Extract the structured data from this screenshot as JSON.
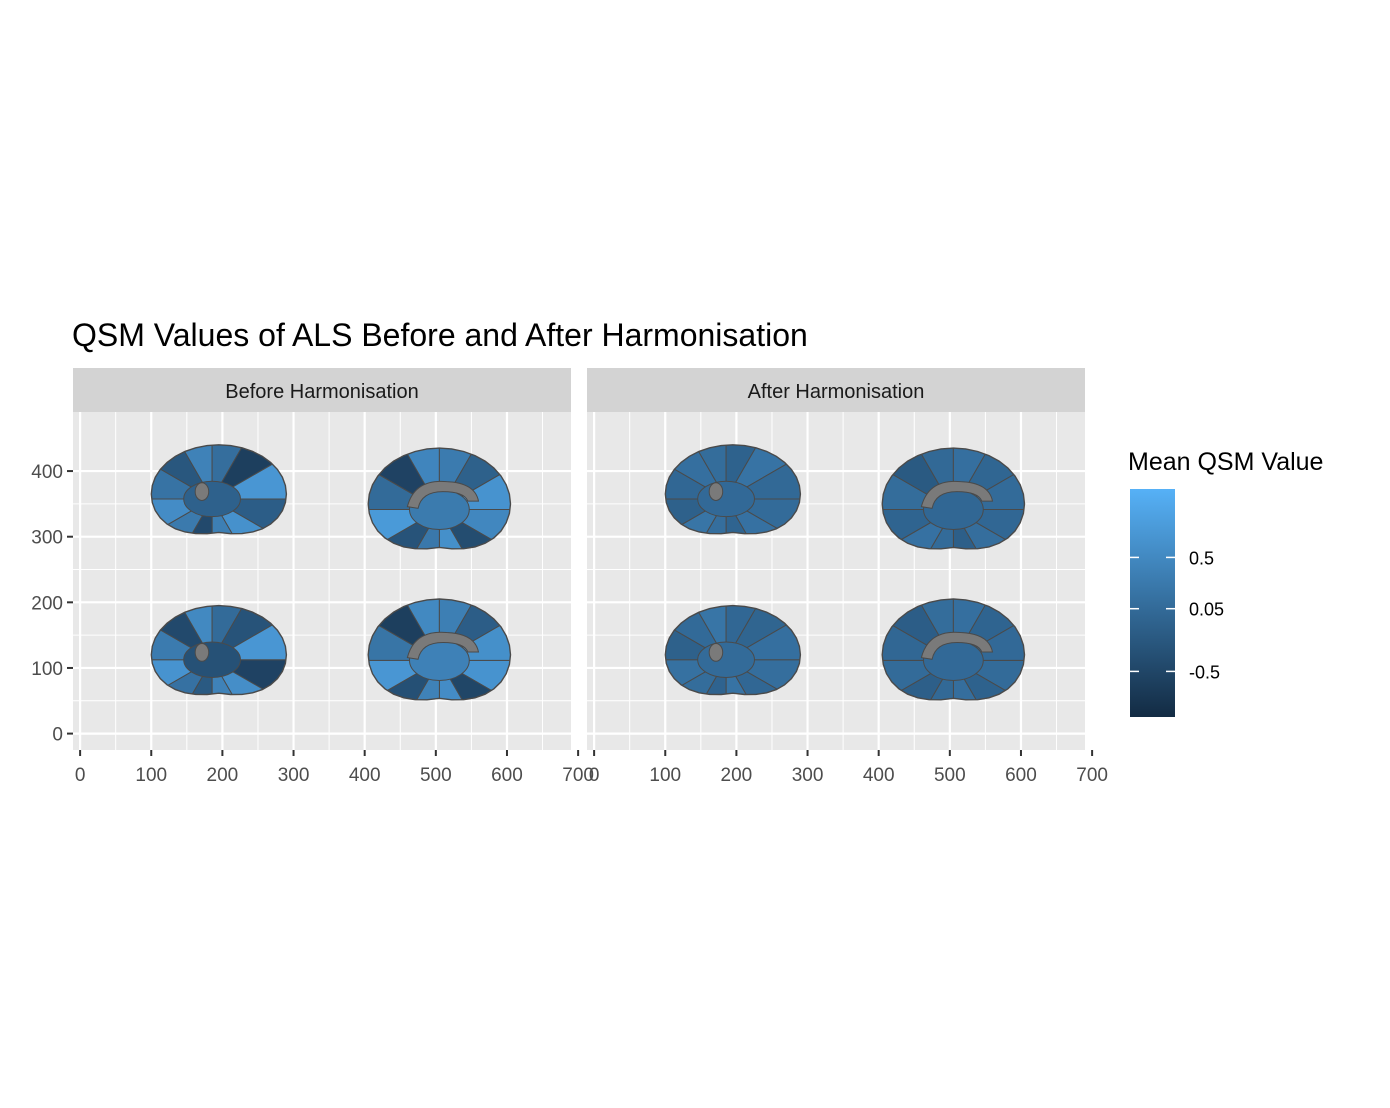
{
  "chart_data": {
    "type": "heatmap",
    "title": "QSM Values of ALS Before and After Harmonisation",
    "xlabel": "",
    "ylabel": "",
    "xlim": [
      -10,
      690
    ],
    "ylim": [
      -25,
      490
    ],
    "x_ticks": [
      0,
      100,
      200,
      300,
      400,
      500,
      600,
      700
    ],
    "y_ticks": [
      0,
      100,
      200,
      300,
      400
    ],
    "grid": true,
    "colors": {
      "low": "#132B43",
      "high": "#56B1F7",
      "missing": "#7a7a7a",
      "outline": "#4a4a4a",
      "panel_bg": "#e8e8e8",
      "strip_bg": "#d3d3d3",
      "grid": "#ffffff"
    },
    "legend": {
      "title": "Mean QSM Value",
      "position": "right",
      "range": [
        -0.9,
        1.1
      ],
      "breaks": [
        0.5,
        0.05,
        -0.5
      ],
      "break_labels": [
        "0.5",
        "0.05",
        "-0.5"
      ]
    },
    "panels": [
      {
        "strip": "Before Harmonisation",
        "views": [
          {
            "name": "lateral-top",
            "cx": 195,
            "cy": 365,
            "rx": 95,
            "ry": 75,
            "regions": [
              -0.15,
              0.62,
              0.35,
              -0.45,
              0.28,
              0.55,
              0.18,
              -0.25,
              0.4,
              0.1,
              -0.6,
              0.7
            ]
          },
          {
            "name": "medial-top",
            "cx": 505,
            "cy": 350,
            "rx": 100,
            "ry": 85,
            "regions": [
              0.48,
              -0.4,
              0.6,
              0.25,
              -0.3,
              0.75,
              0.05,
              -0.55,
              0.45,
              0.3,
              -0.1,
              0.65
            ]
          },
          {
            "name": "lateral-bottom",
            "cx": 195,
            "cy": 120,
            "rx": 95,
            "ry": 75,
            "regions": [
              -0.55,
              0.58,
              0.4,
              -0.2,
              0.15,
              0.65,
              0.3,
              -0.45,
              0.5,
              0.05,
              -0.3,
              0.7
            ]
          },
          {
            "name": "medial-bottom",
            "cx": 505,
            "cy": 120,
            "rx": 100,
            "ry": 85,
            "regions": [
              0.65,
              -0.5,
              0.55,
              0.4,
              -0.35,
              0.7,
              0.2,
              -0.6,
              0.5,
              0.35,
              -0.15,
              0.6
            ]
          }
        ]
      },
      {
        "strip": "After Harmonisation",
        "views": [
          {
            "name": "lateral-top",
            "cx": 195,
            "cy": 365,
            "rx": 95,
            "ry": 75,
            "regions": [
              0.05,
              0.15,
              -0.05,
              0.1,
              0.2,
              -0.1,
              0.0,
              0.12,
              0.08,
              -0.08,
              0.18,
              0.02
            ]
          },
          {
            "name": "medial-top",
            "cx": 505,
            "cy": 350,
            "rx": 100,
            "ry": 85,
            "regions": [
              0.0,
              0.1,
              -0.12,
              0.05,
              0.15,
              -0.05,
              0.08,
              -0.2,
              0.02,
              0.12,
              -0.02,
              0.06
            ]
          },
          {
            "name": "lateral-bottom",
            "cx": 195,
            "cy": 120,
            "rx": 95,
            "ry": 75,
            "regions": [
              0.1,
              0.0,
              0.18,
              -0.06,
              0.08,
              0.14,
              -0.1,
              0.04,
              0.2,
              0.0,
              -0.04,
              0.12
            ]
          },
          {
            "name": "medial-bottom",
            "cx": 505,
            "cy": 120,
            "rx": 100,
            "ry": 85,
            "regions": [
              0.05,
              -0.08,
              0.1,
              0.02,
              -0.12,
              0.06,
              0.0,
              -0.15,
              0.08,
              0.12,
              -0.05,
              0.03
            ]
          }
        ]
      }
    ]
  }
}
